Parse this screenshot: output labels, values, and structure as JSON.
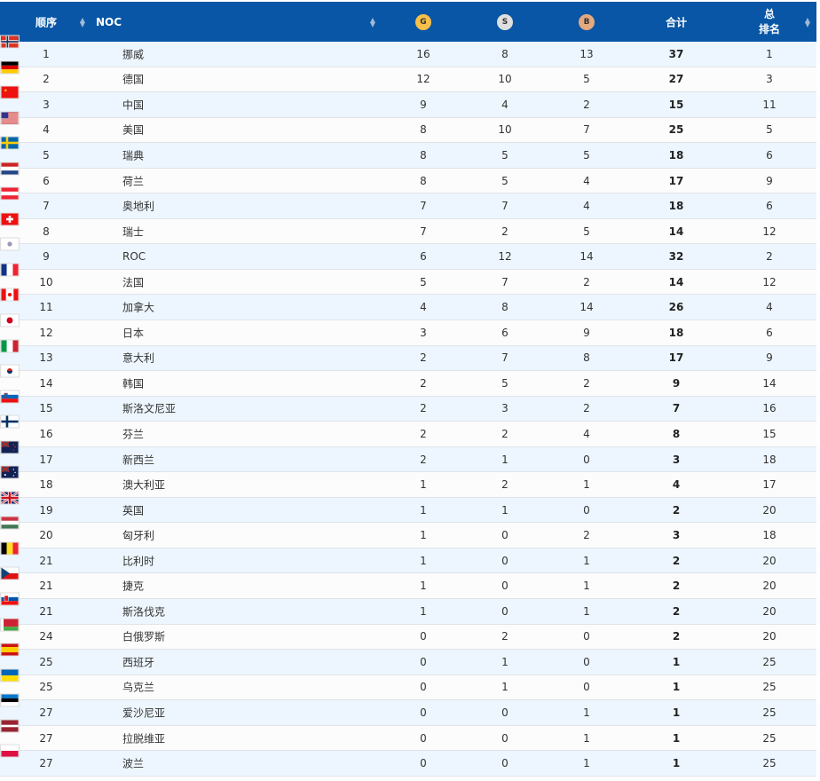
{
  "header": {
    "rank": "顺序",
    "noc": "NOC",
    "gold": "G",
    "silver": "S",
    "bronze": "B",
    "total": "合计",
    "overall_1": "总",
    "overall_2": "排名"
  },
  "colors": {
    "header_bg": "#0856a5",
    "gold": "#f7c04a",
    "silver": "#dfdfdf",
    "bronze": "#e5a97f",
    "row_alt": "#edf6fe"
  },
  "rows": [
    {
      "rank": "1",
      "flag": "NOR",
      "name": "挪威",
      "g": "16",
      "s": "8",
      "b": "13",
      "total": "37",
      "overall": "1"
    },
    {
      "rank": "2",
      "flag": "GER",
      "name": "德国",
      "g": "12",
      "s": "10",
      "b": "5",
      "total": "27",
      "overall": "3"
    },
    {
      "rank": "3",
      "flag": "CHN",
      "name": "中国",
      "g": "9",
      "s": "4",
      "b": "2",
      "total": "15",
      "overall": "11"
    },
    {
      "rank": "4",
      "flag": "USA",
      "name": "美国",
      "g": "8",
      "s": "10",
      "b": "7",
      "total": "25",
      "overall": "5"
    },
    {
      "rank": "5",
      "flag": "SWE",
      "name": "瑞典",
      "g": "8",
      "s": "5",
      "b": "5",
      "total": "18",
      "overall": "6"
    },
    {
      "rank": "6",
      "flag": "NED",
      "name": "荷兰",
      "g": "8",
      "s": "5",
      "b": "4",
      "total": "17",
      "overall": "9"
    },
    {
      "rank": "7",
      "flag": "AUT",
      "name": "奥地利",
      "g": "7",
      "s": "7",
      "b": "4",
      "total": "18",
      "overall": "6"
    },
    {
      "rank": "8",
      "flag": "SUI",
      "name": "瑞士",
      "g": "7",
      "s": "2",
      "b": "5",
      "total": "14",
      "overall": "12"
    },
    {
      "rank": "9",
      "flag": "ROC",
      "name": "ROC",
      "g": "6",
      "s": "12",
      "b": "14",
      "total": "32",
      "overall": "2"
    },
    {
      "rank": "10",
      "flag": "FRA",
      "name": "法国",
      "g": "5",
      "s": "7",
      "b": "2",
      "total": "14",
      "overall": "12"
    },
    {
      "rank": "11",
      "flag": "CAN",
      "name": "加拿大",
      "g": "4",
      "s": "8",
      "b": "14",
      "total": "26",
      "overall": "4"
    },
    {
      "rank": "12",
      "flag": "JPN",
      "name": "日本",
      "g": "3",
      "s": "6",
      "b": "9",
      "total": "18",
      "overall": "6"
    },
    {
      "rank": "13",
      "flag": "ITA",
      "name": "意大利",
      "g": "2",
      "s": "7",
      "b": "8",
      "total": "17",
      "overall": "9"
    },
    {
      "rank": "14",
      "flag": "KOR",
      "name": "韩国",
      "g": "2",
      "s": "5",
      "b": "2",
      "total": "9",
      "overall": "14"
    },
    {
      "rank": "15",
      "flag": "SLO",
      "name": "斯洛文尼亚",
      "g": "2",
      "s": "3",
      "b": "2",
      "total": "7",
      "overall": "16"
    },
    {
      "rank": "16",
      "flag": "FIN",
      "name": "芬兰",
      "g": "2",
      "s": "2",
      "b": "4",
      "total": "8",
      "overall": "15"
    },
    {
      "rank": "17",
      "flag": "NZL",
      "name": "新西兰",
      "g": "2",
      "s": "1",
      "b": "0",
      "total": "3",
      "overall": "18"
    },
    {
      "rank": "18",
      "flag": "AUS",
      "name": "澳大利亚",
      "g": "1",
      "s": "2",
      "b": "1",
      "total": "4",
      "overall": "17"
    },
    {
      "rank": "19",
      "flag": "GBR",
      "name": "英国",
      "g": "1",
      "s": "1",
      "b": "0",
      "total": "2",
      "overall": "20"
    },
    {
      "rank": "20",
      "flag": "HUN",
      "name": "匈牙利",
      "g": "1",
      "s": "0",
      "b": "2",
      "total": "3",
      "overall": "18"
    },
    {
      "rank": "21",
      "flag": "BEL",
      "name": "比利时",
      "g": "1",
      "s": "0",
      "b": "1",
      "total": "2",
      "overall": "20"
    },
    {
      "rank": "21",
      "flag": "CZE",
      "name": "捷克",
      "g": "1",
      "s": "0",
      "b": "1",
      "total": "2",
      "overall": "20"
    },
    {
      "rank": "21",
      "flag": "SVK",
      "name": "斯洛伐克",
      "g": "1",
      "s": "0",
      "b": "1",
      "total": "2",
      "overall": "20"
    },
    {
      "rank": "24",
      "flag": "BLR",
      "name": "白俄罗斯",
      "g": "0",
      "s": "2",
      "b": "0",
      "total": "2",
      "overall": "20"
    },
    {
      "rank": "25",
      "flag": "ESP",
      "name": "西班牙",
      "g": "0",
      "s": "1",
      "b": "0",
      "total": "1",
      "overall": "25"
    },
    {
      "rank": "25",
      "flag": "UKR",
      "name": "乌克兰",
      "g": "0",
      "s": "1",
      "b": "0",
      "total": "1",
      "overall": "25"
    },
    {
      "rank": "27",
      "flag": "EST",
      "name": "爱沙尼亚",
      "g": "0",
      "s": "0",
      "b": "1",
      "total": "1",
      "overall": "25"
    },
    {
      "rank": "27",
      "flag": "LAT",
      "name": "拉脱维亚",
      "g": "0",
      "s": "0",
      "b": "1",
      "total": "1",
      "overall": "25"
    },
    {
      "rank": "27",
      "flag": "POL",
      "name": "波兰",
      "g": "0",
      "s": "0",
      "b": "1",
      "total": "1",
      "overall": "25"
    }
  ]
}
